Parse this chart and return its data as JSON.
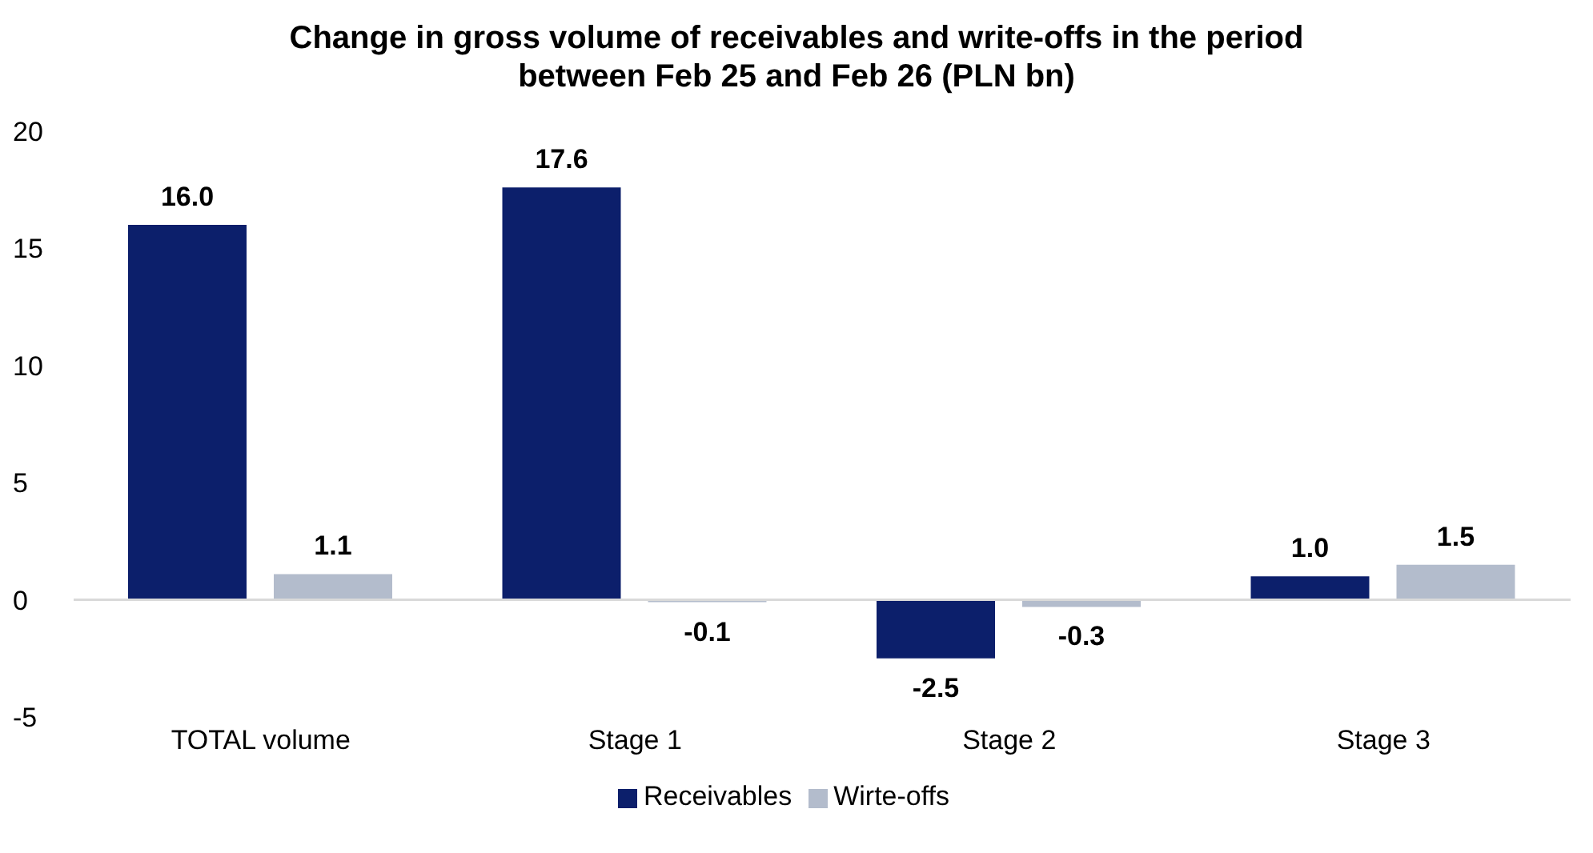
{
  "chart_data": {
    "type": "bar",
    "title": "Change in gross volume of receivables and write-offs in the period between Feb 25 and Feb 26 (PLN bn)",
    "categories": [
      "TOTAL volume",
      "Stage 1",
      "Stage 2",
      "Stage 3"
    ],
    "series": [
      {
        "name": "Receivables",
        "color": "#0c1f6b",
        "values": [
          16.0,
          17.6,
          -2.5,
          1.0
        ],
        "value_labels": [
          "16.0",
          "17.6",
          "-2.5",
          "1.0"
        ]
      },
      {
        "name": "Wirte-offs",
        "color": "#b3bccc",
        "values": [
          1.1,
          -0.1,
          -0.3,
          1.5
        ],
        "value_labels": [
          "1.1",
          "-0.1",
          "-0.3",
          "1.5"
        ]
      }
    ],
    "ylim": [
      -5,
      20
    ],
    "yticks": [
      -5,
      0,
      5,
      10,
      15,
      20
    ],
    "legend": "bottom"
  }
}
